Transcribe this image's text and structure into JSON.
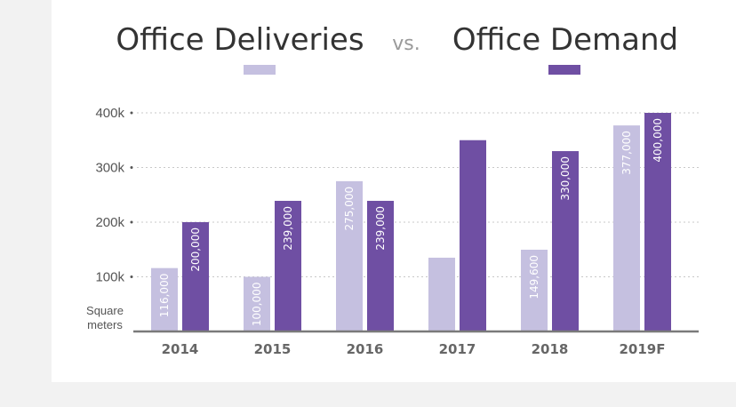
{
  "chart_data": {
    "type": "bar",
    "title_left": "Office Deliveries",
    "title_vs": "vs.",
    "title_right": "Office Demand",
    "unit_label_line1": "Square",
    "unit_label_line2": "meters",
    "categories": [
      "2014",
      "2015",
      "2016",
      "2017",
      "2018",
      "2019F"
    ],
    "y_ticks": [
      {
        "value": 100000,
        "label": "100k"
      },
      {
        "value": 200000,
        "label": "200k"
      },
      {
        "value": 300000,
        "label": "300k"
      },
      {
        "value": 400000,
        "label": "400k"
      }
    ],
    "ylim": [
      0,
      400000
    ],
    "grid": "dotted horizontal",
    "legend": "under title words",
    "series": [
      {
        "color": "#c5c0e0",
        "values": [
          116000,
          100000,
          275000,
          135000,
          149600,
          377000
        ],
        "labels": [
          "116,000",
          "100,000",
          "275,000",
          "",
          "149,600",
          "377,000"
        ]
      },
      {
        "color": "#6f4fa3",
        "values": [
          200000,
          239000,
          239000,
          350000,
          330000,
          400000
        ],
        "labels": [
          "200,000",
          "239,000",
          "239,000",
          "",
          "330,000",
          "400,000"
        ]
      }
    ]
  },
  "colors": {
    "deliveries": "#c5c0e0",
    "demand": "#6f4fa3",
    "axis": "#7a7a7a",
    "grid": "#c8c8c8"
  }
}
